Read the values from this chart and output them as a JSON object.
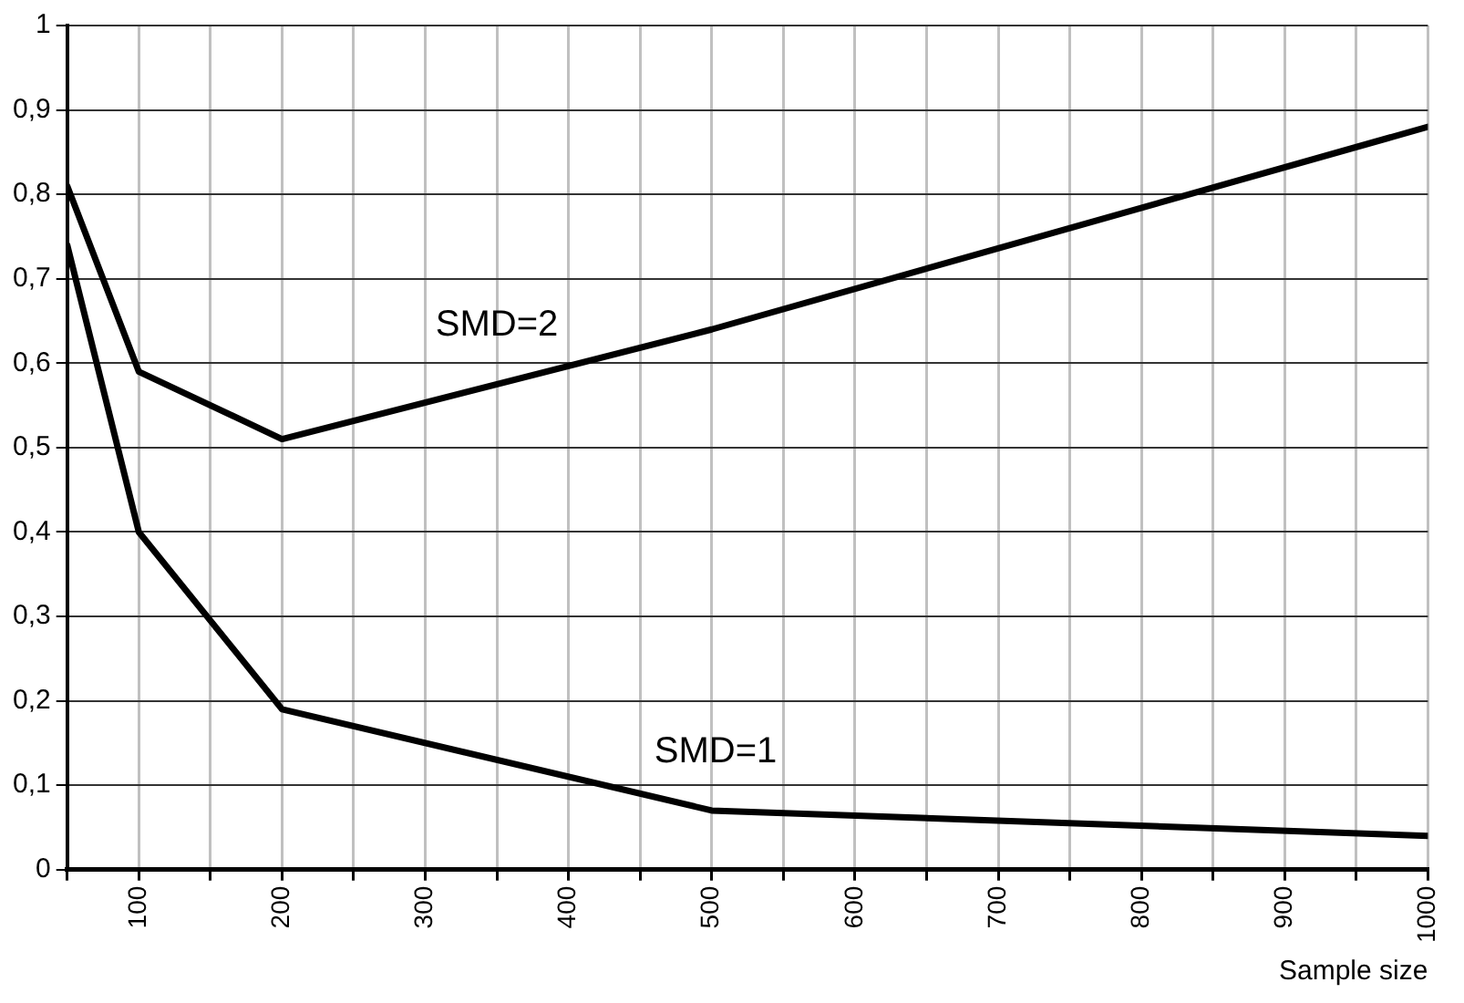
{
  "chart_data": {
    "type": "line",
    "xlabel": "Sample size",
    "x": [
      50,
      100,
      200,
      500,
      1000
    ],
    "series": [
      {
        "name": "SMD=2",
        "color": "#000000",
        "values": [
          0.81,
          0.59,
          0.51,
          0.64,
          0.88
        ]
      },
      {
        "name": "SMD=1",
        "color": "#000000",
        "values": [
          0.74,
          0.4,
          0.19,
          0.07,
          0.04
        ]
      }
    ],
    "xlim": [
      50,
      1000
    ],
    "xticks": [
      {
        "value": 50,
        "label": null
      },
      100,
      {
        "value": 150,
        "label": null
      },
      200,
      {
        "value": 250,
        "label": null
      },
      300,
      {
        "value": 350,
        "label": null
      },
      400,
      {
        "value": 450,
        "label": null
      },
      500,
      {
        "value": 550,
        "label": null
      },
      600,
      {
        "value": 650,
        "label": null
      },
      700,
      {
        "value": 750,
        "label": null
      },
      800,
      {
        "value": 850,
        "label": null
      },
      900,
      {
        "value": 950,
        "label": null
      },
      1000
    ],
    "ylim": [
      0,
      1
    ],
    "yticks": [
      0,
      {
        "value": 0.1,
        "label": "0,1"
      },
      {
        "value": 0.2,
        "label": "0,2"
      },
      {
        "value": 0.3,
        "label": "0,3"
      },
      {
        "value": 0.4,
        "label": "0,4"
      },
      {
        "value": 0.5,
        "label": "0,5"
      },
      {
        "value": 0.6,
        "label": "0,6"
      },
      {
        "value": 0.7,
        "label": "0,7"
      },
      {
        "value": 0.8,
        "label": "0,8"
      },
      {
        "value": 0.9,
        "label": "0,9"
      },
      1
    ],
    "grid": true,
    "legend": false,
    "marker": "none",
    "line_style": "solid"
  }
}
